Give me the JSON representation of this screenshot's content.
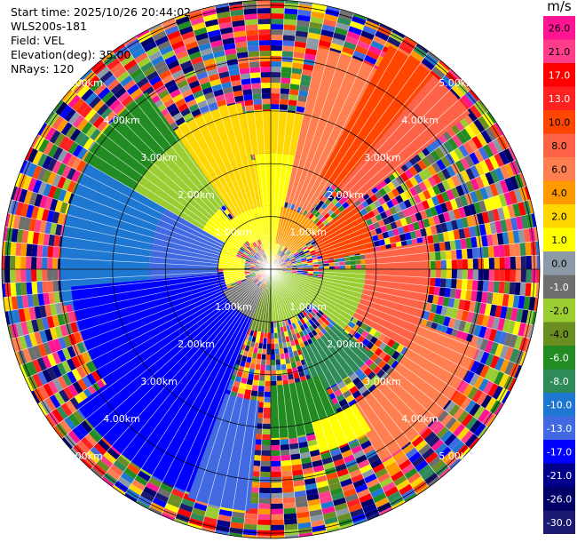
{
  "info": {
    "start_time": "Start time: 2025/10/26 20:44:02",
    "instrument": "WLS200s-181",
    "field": "Field: VEL",
    "elevation": "Elevation(deg): 35.00",
    "nrays": "NRays: 120"
  },
  "chart_data": {
    "type": "polar-ppi",
    "field": "VEL",
    "elevation_deg": 35.0,
    "n_rays": 120,
    "max_range_km": 5.1,
    "ring_ranges_km": [
      1.0,
      2.0,
      3.0,
      4.0,
      5.0
    ],
    "ring_labels": [
      "1.00km",
      "2.00km",
      "3.00km",
      "4.00km",
      "5.00km"
    ],
    "colorbar": {
      "unit": "m/s",
      "tick_labels": [
        "26.0",
        "21.0",
        "17.0",
        "13.0",
        "10.0",
        "8.0",
        "6.0",
        "4.0",
        "2.0",
        "1.0",
        "0.0",
        "-1.0",
        "-2.0",
        "-4.0",
        "-6.0",
        "-8.0",
        "-10.0",
        "-13.0",
        "-17.0",
        "-21.0",
        "-26.0",
        "-30.0"
      ],
      "colors": [
        "#ff1493",
        "#ff3d8b",
        "#ff0000",
        "#ff2020",
        "#ff4500",
        "#ff6347",
        "#ff7f50",
        "#ff9900",
        "#ffd700",
        "#ffff00",
        "#8c9aa8",
        "#6e6e6e",
        "#9acd32",
        "#6b8e23",
        "#228b22",
        "#2e8b57",
        "#1e78d2",
        "#4169e1",
        "#0000ff",
        "#00008b",
        "#000066",
        "#191970"
      ]
    },
    "sectors": [
      {
        "az": [
          -20,
          22
        ],
        "r_km": [
          0,
          0.6
        ],
        "color": "#ffff00"
      },
      {
        "az": [
          -40,
          20
        ],
        "r_km": [
          0.6,
          1.2
        ],
        "color": "#ffff00"
      },
      {
        "az": [
          -8,
          12
        ],
        "r_km": [
          1.2,
          2.2
        ],
        "color": "#ffff00"
      },
      {
        "az": [
          -35,
          -8
        ],
        "r_km": [
          1.2,
          2.1
        ],
        "color": "#ffd700"
      },
      {
        "az": [
          -70,
          -40
        ],
        "r_km": [
          0.7,
          1.5
        ],
        "color": "#ffff00"
      },
      {
        "az": [
          -90,
          -70
        ],
        "r_km": [
          0.5,
          1.0
        ],
        "color": "#ffff00"
      },
      {
        "az": [
          -110,
          -90
        ],
        "r_km": [
          0.5,
          0.9
        ],
        "color": "#ffff00"
      },
      {
        "az": [
          -35,
          -10
        ],
        "r_km": [
          2.1,
          3.2
        ],
        "color": "#ffd700"
      },
      {
        "az": [
          -10,
          12
        ],
        "r_km": [
          2.2,
          3.0
        ],
        "color": "#ffd700"
      },
      {
        "az": [
          -60,
          -35
        ],
        "r_km": [
          1.5,
          3.0
        ],
        "color": "#9acd32"
      },
      {
        "az": [
          -60,
          -35
        ],
        "r_km": [
          3.0,
          4.1
        ],
        "color": "#228b22"
      },
      {
        "az": [
          -95,
          -60
        ],
        "r_km": [
          1.0,
          2.3
        ],
        "color": "#4169e1"
      },
      {
        "az": [
          -100,
          -60
        ],
        "r_km": [
          2.3,
          4.0
        ],
        "color": "#1e78d2"
      },
      {
        "az": [
          -125,
          -95
        ],
        "r_km": [
          0.9,
          3.8
        ],
        "color": "#0000ff"
      },
      {
        "az": [
          -160,
          -125
        ],
        "r_km": [
          1.0,
          4.5
        ],
        "color": "#0000ff"
      },
      {
        "az": [
          -175,
          -160
        ],
        "r_km": [
          2.5,
          4.6
        ],
        "color": "#4169e1"
      },
      {
        "az": [
          -160,
          -115
        ],
        "r_km": [
          0.4,
          1.0
        ],
        "color": "#6e6e6e"
      },
      {
        "az": [
          100,
          180
        ],
        "r_km": [
          0,
          1.0
        ],
        "color": "#9acd32"
      },
      {
        "az": [
          -180,
          -160
        ],
        "r_km": [
          0,
          1.2
        ],
        "color": "#6b8e23"
      },
      {
        "az": [
          90,
          130
        ],
        "r_km": [
          1.0,
          1.8
        ],
        "color": "#9acd32"
      },
      {
        "az": [
          130,
          160
        ],
        "r_km": [
          1.6,
          2.5
        ],
        "color": "#2e8b57"
      },
      {
        "az": [
          155,
          180
        ],
        "r_km": [
          2.2,
          3.2
        ],
        "color": "#228b22"
      },
      {
        "az": [
          10,
          55
        ],
        "r_km": [
          0.5,
          1.2
        ],
        "color": "#ff9900"
      },
      {
        "az": [
          12,
          35
        ],
        "r_km": [
          1.3,
          2.2
        ],
        "color": "#ff7f50"
      },
      {
        "az": [
          12,
          28
        ],
        "r_km": [
          2.2,
          4.3
        ],
        "color": "#ff7f50"
      },
      {
        "az": [
          28,
          40
        ],
        "r_km": [
          2.0,
          4.8
        ],
        "color": "#ff4500"
      },
      {
        "az": [
          40,
          52
        ],
        "r_km": [
          2.0,
          4.8
        ],
        "color": "#ff6347"
      },
      {
        "az": [
          52,
          80
        ],
        "r_km": [
          1.0,
          2.0
        ],
        "color": "#ff4500"
      },
      {
        "az": [
          80,
          120
        ],
        "r_km": [
          1.8,
          3.0
        ],
        "color": "#ff6347"
      },
      {
        "az": [
          110,
          150
        ],
        "r_km": [
          3.0,
          4.2
        ],
        "color": "#ff7f50"
      },
      {
        "az": [
          148,
          165
        ],
        "r_km": [
          3.0,
          3.6
        ],
        "color": "#ffff00"
      }
    ]
  }
}
